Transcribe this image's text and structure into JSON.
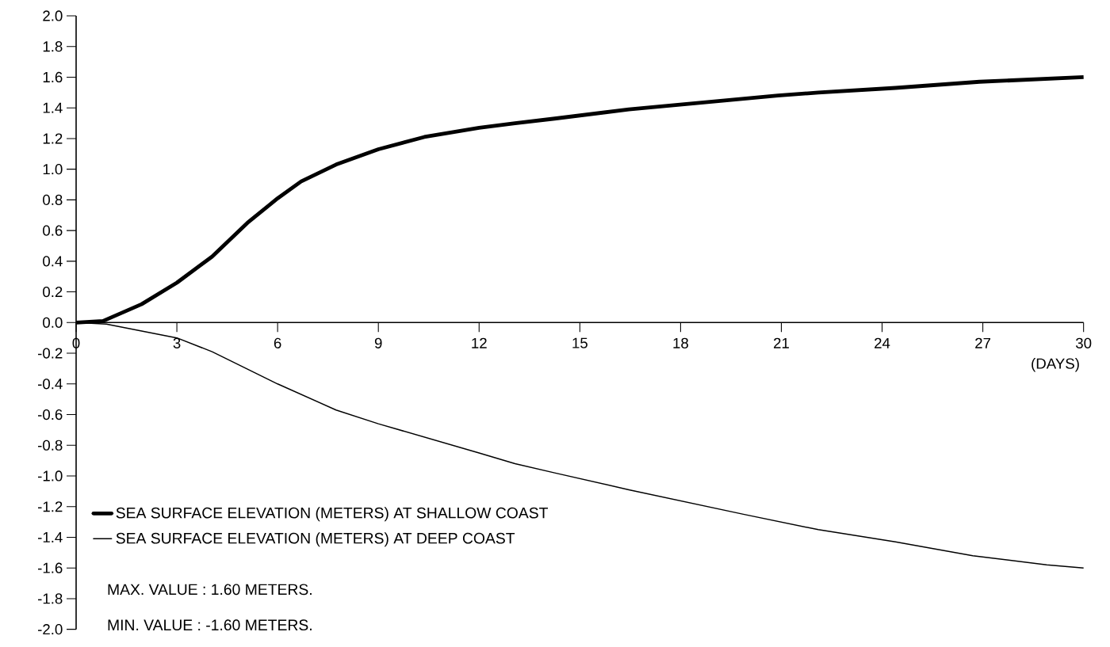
{
  "chart_data": {
    "type": "line",
    "xlabel": "(DAYS)",
    "xlim": [
      0,
      30
    ],
    "xticks": [
      0,
      3,
      6,
      9,
      12,
      15,
      18,
      21,
      24,
      27,
      30
    ],
    "ylim": [
      -2,
      2
    ],
    "yticks": [
      {
        "value": -2,
        "label": "-2.0"
      },
      {
        "value": -1.8,
        "label": "-1.8"
      },
      {
        "value": -1.6,
        "label": "-1.6"
      },
      {
        "value": -1.4,
        "label": "-1.4"
      },
      {
        "value": -1.2,
        "label": "-1.2"
      },
      {
        "value": -1,
        "label": "-1.0"
      },
      {
        "value": -0.8,
        "label": "-0.8"
      },
      {
        "value": -0.6,
        "label": "-0.6"
      },
      {
        "value": -0.4,
        "label": "-0.4"
      },
      {
        "value": -0.2,
        "label": "-0.2"
      },
      {
        "value": 0,
        "label": "0.0"
      },
      {
        "value": 0.2,
        "label": "0.2"
      },
      {
        "value": 0.4,
        "label": "0.4"
      },
      {
        "value": 0.6,
        "label": "0.6"
      },
      {
        "value": 0.8,
        "label": "0.8"
      },
      {
        "value": 1,
        "label": "1.0"
      },
      {
        "value": 1.2,
        "label": "1.2"
      },
      {
        "value": 1.4,
        "label": "1.4"
      },
      {
        "value": 1.6,
        "label": "1.6"
      },
      {
        "value": 1.8,
        "label": "1.8"
      },
      {
        "value": 2,
        "label": "2.0"
      }
    ],
    "legend": "bottom left",
    "series": [
      {
        "name": "SEA SURFACE ELEVATION (METERS) AT SHALLOW COAST",
        "color": "#000000",
        "x": [
          0,
          0.8,
          1.95,
          3,
          4.05,
          5.1,
          6,
          6.7,
          7.74,
          9,
          10.37,
          12,
          13.07,
          14.25,
          16.46,
          20.9,
          22.1,
          24.4,
          26.9,
          30
        ],
        "values": [
          0,
          0.01,
          0.12,
          0.26,
          0.43,
          0.65,
          0.81,
          0.92,
          1.03,
          1.13,
          1.21,
          1.27,
          1.3,
          1.33,
          1.39,
          1.48,
          1.5,
          1.53,
          1.57,
          1.6
        ]
      },
      {
        "name": "SEA SURFACE ELEVATION (METERS) AT DEEP COAST",
        "color": "#000000",
        "x": [
          0,
          0.9,
          3,
          4.05,
          6,
          7.74,
          9,
          12,
          13.07,
          14.25,
          16.46,
          19.87,
          22.1,
          24.4,
          26.7,
          28.9,
          30
        ],
        "values": [
          0,
          -0.01,
          -0.1,
          -0.19,
          -0.4,
          -0.57,
          -0.66,
          -0.85,
          -0.92,
          -0.98,
          -1.09,
          -1.25,
          -1.35,
          -1.43,
          -1.52,
          -1.58,
          -1.6
        ]
      }
    ],
    "annotations": [
      "MAX. VALUE : 1.60 METERS.",
      "MIN. VALUE : -1.60 METERS."
    ]
  }
}
